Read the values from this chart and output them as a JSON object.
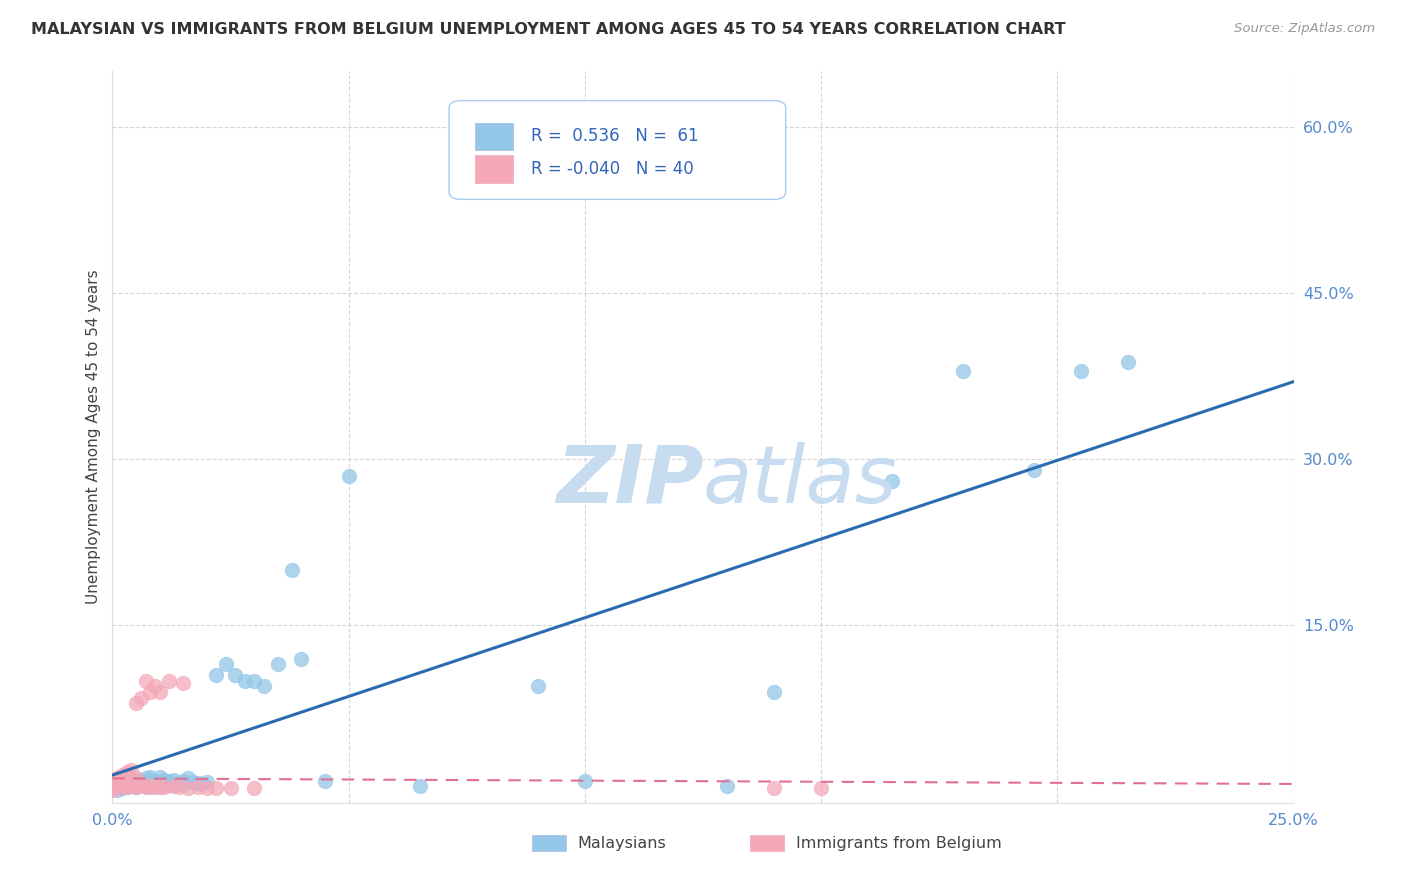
{
  "title": "MALAYSIAN VS IMMIGRANTS FROM BELGIUM UNEMPLOYMENT AMONG AGES 45 TO 54 YEARS CORRELATION CHART",
  "source": "Source: ZipAtlas.com",
  "ylabel": "Unemployment Among Ages 45 to 54 years",
  "xlim": [
    0.0,
    0.25
  ],
  "ylim": [
    -0.01,
    0.65
  ],
  "xticks": [
    0.0,
    0.05,
    0.1,
    0.15,
    0.2,
    0.25
  ],
  "xtick_labels": [
    "0.0%",
    "",
    "",
    "",
    "",
    "25.0%"
  ],
  "yticks_right": [
    0.15,
    0.3,
    0.45,
    0.6
  ],
  "ytick_labels": [
    "15.0%",
    "30.0%",
    "45.0%",
    "60.0%"
  ],
  "blue_R": 0.536,
  "blue_N": 61,
  "pink_R": -0.04,
  "pink_N": 40,
  "blue_color": "#93C6E8",
  "pink_color": "#F4A8B8",
  "line_blue_color": "#2B6CB0",
  "line_pink_color": "#E07090",
  "legend_label_blue": "Malaysians",
  "legend_label_pink": "Immigrants from Belgium",
  "watermark": "ZIPatlas",
  "blue_x": [
    0.001,
    0.001,
    0.002,
    0.002,
    0.003,
    0.003,
    0.003,
    0.004,
    0.004,
    0.004,
    0.005,
    0.005,
    0.005,
    0.006,
    0.006,
    0.007,
    0.007,
    0.007,
    0.008,
    0.008,
    0.008,
    0.009,
    0.009,
    0.01,
    0.01,
    0.01,
    0.011,
    0.011,
    0.012,
    0.012,
    0.013,
    0.013,
    0.014,
    0.015,
    0.015,
    0.016,
    0.017,
    0.018,
    0.019,
    0.02,
    0.022,
    0.024,
    0.026,
    0.028,
    0.03,
    0.032,
    0.035,
    0.038,
    0.04,
    0.045,
    0.05,
    0.065,
    0.09,
    0.1,
    0.13,
    0.14,
    0.165,
    0.18,
    0.195,
    0.205,
    0.215
  ],
  "blue_y": [
    0.002,
    0.005,
    0.003,
    0.006,
    0.004,
    0.007,
    0.01,
    0.005,
    0.008,
    0.012,
    0.004,
    0.007,
    0.011,
    0.006,
    0.01,
    0.005,
    0.008,
    0.012,
    0.004,
    0.009,
    0.013,
    0.006,
    0.01,
    0.005,
    0.009,
    0.013,
    0.007,
    0.011,
    0.006,
    0.01,
    0.007,
    0.011,
    0.008,
    0.006,
    0.01,
    0.012,
    0.009,
    0.008,
    0.007,
    0.009,
    0.105,
    0.115,
    0.105,
    0.1,
    0.1,
    0.095,
    0.115,
    0.2,
    0.12,
    0.01,
    0.285,
    0.005,
    0.095,
    0.01,
    0.005,
    0.09,
    0.28,
    0.38,
    0.29,
    0.38,
    0.388
  ],
  "pink_x": [
    0.0,
    0.0,
    0.001,
    0.001,
    0.001,
    0.002,
    0.002,
    0.002,
    0.003,
    0.003,
    0.003,
    0.004,
    0.004,
    0.004,
    0.005,
    0.005,
    0.005,
    0.006,
    0.006,
    0.007,
    0.007,
    0.008,
    0.008,
    0.009,
    0.009,
    0.01,
    0.01,
    0.011,
    0.012,
    0.013,
    0.014,
    0.015,
    0.016,
    0.018,
    0.02,
    0.022,
    0.025,
    0.03,
    0.14,
    0.15
  ],
  "pink_y": [
    0.002,
    0.005,
    0.003,
    0.008,
    0.012,
    0.005,
    0.01,
    0.015,
    0.004,
    0.008,
    0.018,
    0.005,
    0.01,
    0.02,
    0.004,
    0.012,
    0.08,
    0.006,
    0.085,
    0.004,
    0.1,
    0.005,
    0.09,
    0.004,
    0.095,
    0.004,
    0.09,
    0.004,
    0.1,
    0.005,
    0.004,
    0.098,
    0.003,
    0.004,
    0.003,
    0.003,
    0.003,
    0.003,
    0.003,
    0.003
  ]
}
